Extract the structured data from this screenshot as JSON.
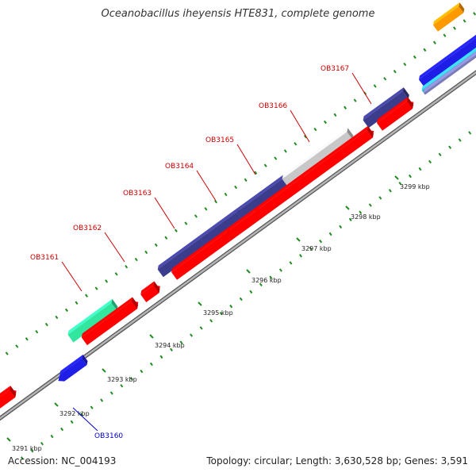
{
  "title": "Oceanobacillus iheyensis HTE831, complete genome",
  "footer": {
    "accession": "Accession: NC_004193",
    "summary": "Topology: circular; Length: 3,630,528 bp; Genes: 3,591"
  },
  "scale_labels": [
    "3291 kbp",
    "3292 kbp",
    "3293 kbp",
    "3294 kbp",
    "3295 kbp",
    "3296 kbp",
    "3297 kbp",
    "3298 kbp",
    "3299 kbp"
  ],
  "gene_labels": [
    "OB3160",
    "OB3161",
    "OB3162",
    "OB3163",
    "OB3164",
    "OB3165",
    "OB3166",
    "OB3167"
  ],
  "colors": {
    "cds": "#ff0000",
    "cog_purple": "#3c3c8c",
    "cog_green": "#33e6a0",
    "cog_gray": "#c8c8c8",
    "cog_blue": "#1e1ee6",
    "cog_orange": "#ff9900",
    "backbone": "#8a8a8a",
    "tick": "#228b22",
    "label_red": "#cc0000",
    "label_blue": "#0000cc"
  }
}
